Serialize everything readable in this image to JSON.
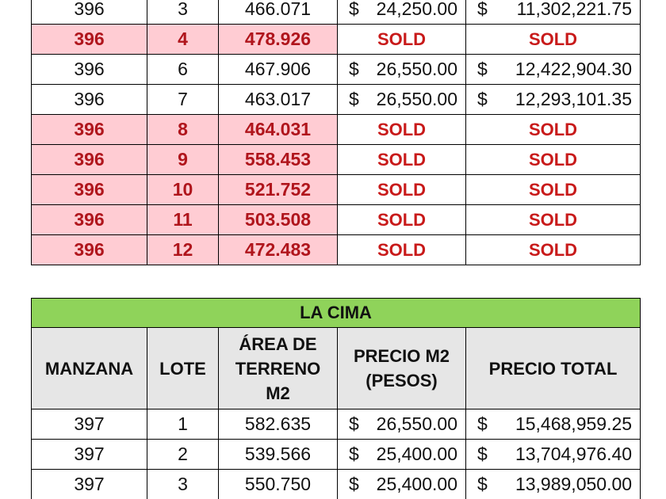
{
  "top_table": {
    "rows": [
      {
        "manzana": "396",
        "lote": "3",
        "area": "466.071",
        "precio_m2": "24,250.00",
        "precio_total": "11,302,221.75",
        "sold": false
      },
      {
        "manzana": "396",
        "lote": "4",
        "area": "478.926",
        "status": "SOLD",
        "sold": true
      },
      {
        "manzana": "396",
        "lote": "6",
        "area": "467.906",
        "precio_m2": "26,550.00",
        "precio_total": "12,422,904.30",
        "sold": false
      },
      {
        "manzana": "396",
        "lote": "7",
        "area": "463.017",
        "precio_m2": "26,550.00",
        "precio_total": "12,293,101.35",
        "sold": false
      },
      {
        "manzana": "396",
        "lote": "8",
        "area": "464.031",
        "status": "SOLD",
        "sold": true
      },
      {
        "manzana": "396",
        "lote": "9",
        "area": "558.453",
        "status": "SOLD",
        "sold": true
      },
      {
        "manzana": "396",
        "lote": "10",
        "area": "521.752",
        "status": "SOLD",
        "sold": true
      },
      {
        "manzana": "396",
        "lote": "11",
        "area": "503.508",
        "status": "SOLD",
        "sold": true
      },
      {
        "manzana": "396",
        "lote": "12",
        "area": "472.483",
        "status": "SOLD",
        "sold": true
      }
    ]
  },
  "bottom_table": {
    "title": "LA CIMA",
    "headers": {
      "manzana": "MANZANA",
      "lote": "LOTE",
      "area": [
        "ÁREA DE",
        "TERRENO",
        "M2"
      ],
      "precio_m2": [
        "PRECIO M2",
        "(PESOS)"
      ],
      "precio_total": "PRECIO TOTAL"
    },
    "rows": [
      {
        "manzana": "397",
        "lote": "1",
        "area": "582.635",
        "precio_m2": "26,550.00",
        "precio_total": "15,468,959.25"
      },
      {
        "manzana": "397",
        "lote": "2",
        "area": "539.566",
        "precio_m2": "25,400.00",
        "precio_total": "13,704,976.40"
      },
      {
        "manzana": "397",
        "lote": "3",
        "area": "550.750",
        "precio_m2": "25,400.00",
        "precio_total": "13,989,050.00"
      }
    ]
  },
  "currency_symbol": "$",
  "colors": {
    "sold_row_bg": "#ffccd3",
    "sold_text": "#c81a1a",
    "title_bg": "#8fd35a",
    "header_bg": "#e6e6e6"
  }
}
